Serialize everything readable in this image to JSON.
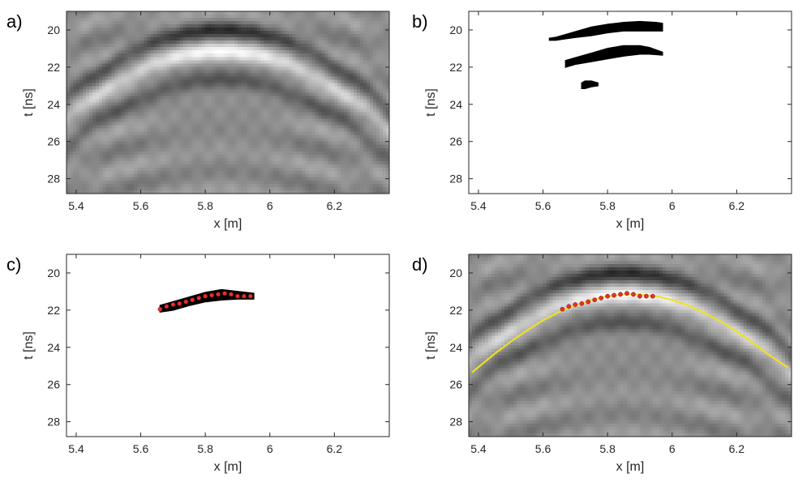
{
  "chart_data": [
    {
      "panel_label": "a)",
      "type": "heatmap",
      "xlabel": "x [m]",
      "ylabel": "t [ns]",
      "xlim": [
        5.37,
        6.37
      ],
      "ylim": [
        19.0,
        28.8
      ],
      "y_reversed": true,
      "x_ticks": [
        "5.4",
        "5.6",
        "5.8",
        "6",
        "6.2"
      ],
      "x_tick_values": [
        5.4,
        5.6,
        5.8,
        6.0,
        6.2
      ],
      "y_ticks": [
        "20",
        "22",
        "24",
        "26",
        "28"
      ],
      "y_tick_values": [
        20,
        22,
        24,
        26,
        28
      ],
      "colormap": "gray",
      "grid": false,
      "image_description_data": {
        "hyperbola_apex_x": 5.85,
        "hyperbola_apex_t": 21.1,
        "hyperbola_curvature": 15.5
      }
    },
    {
      "panel_label": "b)",
      "type": "heatmap",
      "xlabel": "x [m]",
      "ylabel": "t [ns]",
      "xlim": [
        5.37,
        6.37
      ],
      "ylim": [
        19.0,
        28.8
      ],
      "y_reversed": true,
      "x_ticks": [
        "5.4",
        "5.6",
        "5.8",
        "6",
        "6.2"
      ],
      "x_tick_values": [
        5.4,
        5.6,
        5.8,
        6.0,
        6.2
      ],
      "y_ticks": [
        "20",
        "22",
        "24",
        "26",
        "28"
      ],
      "y_tick_values": [
        20,
        22,
        24,
        26,
        28
      ],
      "colormap": "binary",
      "grid": false,
      "regions": [
        {
          "x": [
            5.62,
            5.64,
            5.66,
            5.7,
            5.75,
            5.8,
            5.85,
            5.9,
            5.95,
            5.97
          ],
          "t_top": [
            20.45,
            20.4,
            20.3,
            20.1,
            19.85,
            19.7,
            19.6,
            19.55,
            19.6,
            19.65
          ],
          "t_bottom": [
            20.55,
            20.55,
            20.5,
            20.4,
            20.3,
            20.15,
            20.05,
            20.05,
            20.05,
            20.05
          ]
        },
        {
          "x": [
            5.67,
            5.7,
            5.75,
            5.8,
            5.85,
            5.9,
            5.93,
            5.97
          ],
          "t_top": [
            21.65,
            21.5,
            21.25,
            21.0,
            20.85,
            20.85,
            20.95,
            21.2
          ],
          "t_bottom": [
            22.0,
            21.85,
            21.7,
            21.55,
            21.4,
            21.3,
            21.3,
            21.35
          ]
        },
        {
          "x": [
            5.72,
            5.73,
            5.75,
            5.77
          ],
          "t_top": [
            22.85,
            22.75,
            22.75,
            22.85
          ],
          "t_bottom": [
            23.15,
            23.15,
            23.05,
            23.0
          ]
        }
      ]
    },
    {
      "panel_label": "c)",
      "type": "scatter",
      "xlabel": "x [m]",
      "ylabel": "t [ns]",
      "xlim": [
        5.37,
        6.37
      ],
      "ylim": [
        19.0,
        28.8
      ],
      "y_reversed": true,
      "x_ticks": [
        "5.4",
        "5.6",
        "5.8",
        "6",
        "6.2"
      ],
      "x_tick_values": [
        5.4,
        5.6,
        5.8,
        6.0,
        6.2
      ],
      "y_ticks": [
        "20",
        "22",
        "24",
        "26",
        "28"
      ],
      "y_tick_values": [
        20,
        22,
        24,
        26,
        28
      ],
      "grid": false,
      "region": {
        "x": [
          5.66,
          5.7,
          5.75,
          5.8,
          5.85,
          5.9,
          5.95
        ],
        "t_top": [
          21.75,
          21.55,
          21.3,
          21.05,
          20.9,
          21.0,
          21.1
        ],
        "t_bottom": [
          22.1,
          22.0,
          21.75,
          21.55,
          21.45,
          21.4,
          21.4
        ]
      },
      "points": {
        "x": [
          5.66,
          5.68,
          5.7,
          5.72,
          5.74,
          5.76,
          5.78,
          5.8,
          5.82,
          5.84,
          5.86,
          5.88,
          5.9,
          5.92,
          5.94
        ],
        "t": [
          21.95,
          21.8,
          21.7,
          21.65,
          21.55,
          21.45,
          21.35,
          21.25,
          21.2,
          21.15,
          21.1,
          21.15,
          21.25,
          21.25,
          21.25
        ],
        "color": "#e8302a"
      }
    },
    {
      "panel_label": "d)",
      "type": "line",
      "xlabel": "x [m]",
      "ylabel": "t [ns]",
      "xlim": [
        5.37,
        6.37
      ],
      "ylim": [
        19.0,
        28.8
      ],
      "y_reversed": true,
      "x_ticks": [
        "5.4",
        "5.6",
        "5.8",
        "6",
        "6.2"
      ],
      "x_tick_values": [
        5.4,
        5.6,
        5.8,
        6.0,
        6.2
      ],
      "y_ticks": [
        "20",
        "22",
        "24",
        "26",
        "28"
      ],
      "y_tick_values": [
        20,
        22,
        24,
        26,
        28
      ],
      "colormap": "gray",
      "grid": false,
      "points": {
        "x": [
          5.66,
          5.68,
          5.7,
          5.72,
          5.74,
          5.76,
          5.78,
          5.8,
          5.82,
          5.84,
          5.86,
          5.88,
          5.9,
          5.92,
          5.94
        ],
        "t": [
          21.95,
          21.8,
          21.7,
          21.65,
          21.55,
          21.45,
          21.35,
          21.25,
          21.2,
          21.15,
          21.1,
          21.15,
          21.25,
          21.25,
          21.25
        ],
        "color": "#e8302a"
      },
      "fit_curve": {
        "x": [
          5.38,
          5.45,
          5.5,
          5.55,
          5.6,
          5.65,
          5.7,
          5.75,
          5.8,
          5.85,
          5.9,
          5.95,
          6.0,
          6.05,
          6.1,
          6.15,
          6.2,
          6.25,
          6.3,
          6.36
        ],
        "t": [
          25.35,
          24.35,
          23.7,
          23.1,
          22.55,
          22.1,
          21.75,
          21.45,
          21.25,
          21.15,
          21.15,
          21.25,
          21.45,
          21.75,
          22.15,
          22.6,
          23.15,
          23.75,
          24.4,
          25.1
        ],
        "color": "#f2e21a"
      }
    }
  ]
}
